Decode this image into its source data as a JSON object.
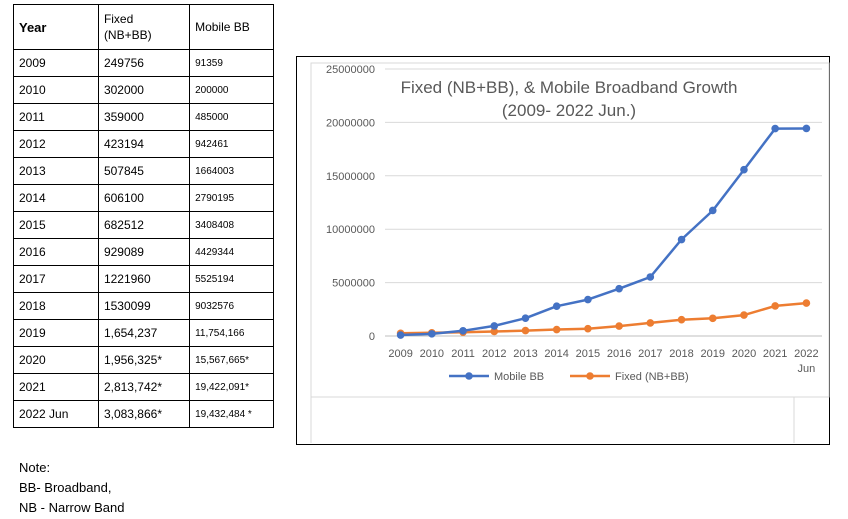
{
  "table": {
    "header": {
      "year": "Year",
      "fixed_line1": "Fixed",
      "fixed_line2": "(NB+BB)",
      "mobile": "Mobile BB"
    },
    "rows": [
      {
        "year": "2009",
        "fixed": "249756",
        "mobile": "91359"
      },
      {
        "year": "2010",
        "fixed": "302000",
        "mobile": "200000"
      },
      {
        "year": "2011",
        "fixed": "359000",
        "mobile": "485000"
      },
      {
        "year": "2012",
        "fixed": "423194",
        "mobile": "942461"
      },
      {
        "year": "2013",
        "fixed": "507845",
        "mobile": "1664003"
      },
      {
        "year": "2014",
        "fixed": "606100",
        "mobile": "2790195"
      },
      {
        "year": "2015",
        "fixed": "682512",
        "mobile": "3408408"
      },
      {
        "year": "2016",
        "fixed": "929089",
        "mobile": "4429344"
      },
      {
        "year": "2017",
        "fixed": "1221960",
        "mobile": "5525194"
      },
      {
        "year": "2018",
        "fixed": "1530099",
        "mobile": "9032576"
      },
      {
        "year": "2019",
        "fixed": "1,654,237",
        "mobile": "11,754,166"
      },
      {
        "year": "2020",
        "fixed": "1,956,325*",
        "mobile": "15,567,665*"
      },
      {
        "year": "2021",
        "fixed": "2,813,742*",
        "mobile": "19,422,091*"
      },
      {
        "year": "2022 Jun",
        "fixed": "3,083,866*",
        "mobile": "19,432,484 *"
      }
    ]
  },
  "note": {
    "title": "Note:",
    "lines": [
      "BB- Broadband,",
      "NB - Narrow Band"
    ]
  },
  "chart_data": {
    "type": "line",
    "title": "Fixed (NB+BB), & Mobile Broadband Growth",
    "subtitle": "(2009- 2022 Jun.)",
    "categories": [
      "2009",
      "2010",
      "2011",
      "2012",
      "2013",
      "2014",
      "2015",
      "2016",
      "2017",
      "2018",
      "2019",
      "2020",
      "2021",
      "2022 Jun"
    ],
    "tick_labels": [
      [
        "2009"
      ],
      [
        "2010"
      ],
      [
        "2011"
      ],
      [
        "2012"
      ],
      [
        "2013"
      ],
      [
        "2014"
      ],
      [
        "2015"
      ],
      [
        "2016"
      ],
      [
        "2017"
      ],
      [
        "2018"
      ],
      [
        "2019"
      ],
      [
        "2020"
      ],
      [
        "2021"
      ],
      [
        "2022",
        "Jun"
      ]
    ],
    "y_ticks": [
      "0",
      "5000000",
      "10000000",
      "15000000",
      "20000000",
      "25000000"
    ],
    "ylim": [
      0,
      25000000
    ],
    "series": [
      {
        "name": "Mobile BB",
        "color": "#4472C4",
        "values": [
          91359,
          200000,
          485000,
          942461,
          1664003,
          2790195,
          3408408,
          4429344,
          5525194,
          9032576,
          11754166,
          15567665,
          19422091,
          19432484
        ]
      },
      {
        "name": "Fixed (NB+BB)",
        "color": "#ED7D31",
        "values": [
          249756,
          302000,
          359000,
          423194,
          507845,
          606100,
          682512,
          929089,
          1221960,
          1530099,
          1654237,
          1956325,
          2813742,
          3083866
        ]
      }
    ],
    "legend_position": "bottom",
    "grid": true,
    "gridline_color": "#D9D9D9"
  }
}
